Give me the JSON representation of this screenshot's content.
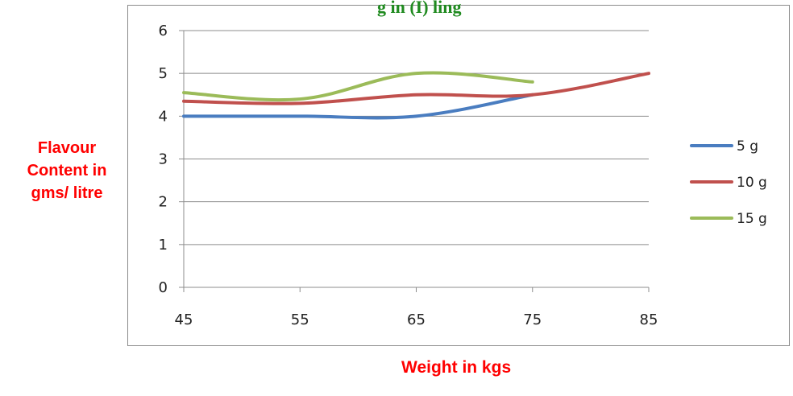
{
  "header": {
    "title_fragment": "g in (I) ling"
  },
  "chart_data": {
    "type": "line",
    "title": "",
    "xlabel": "Weight in kgs",
    "ylabel": [
      "Flavour",
      "Content in",
      "gms/ litre"
    ],
    "x_ticks": [
      45,
      55,
      65,
      75,
      85
    ],
    "y_ticks": [
      0,
      1,
      2,
      3,
      4,
      5,
      6
    ],
    "xlim": [
      45,
      85
    ],
    "ylim": [
      0,
      6
    ],
    "grid": true,
    "legend_position": "right",
    "series": [
      {
        "name": "5 g",
        "color": "#4a7dc0",
        "x": [
          45,
          55,
          65,
          75
        ],
        "y": [
          4.0,
          4.0,
          4.0,
          4.5
        ]
      },
      {
        "name": "10 g",
        "color": "#c0504d",
        "x": [
          45,
          55,
          65,
          75,
          85
        ],
        "y": [
          4.35,
          4.3,
          4.5,
          4.5,
          5.0
        ]
      },
      {
        "name": "15 g",
        "color": "#9bbb59",
        "x": [
          45,
          55,
          65,
          75
        ],
        "y": [
          4.55,
          4.4,
          5.0,
          4.8
        ]
      }
    ]
  }
}
